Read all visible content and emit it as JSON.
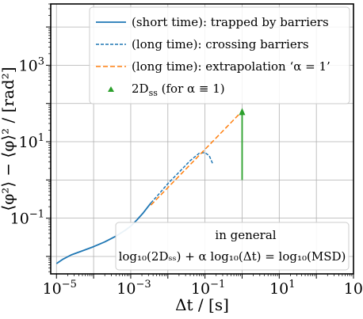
{
  "chart_data": {
    "type": "line",
    "xscale": "log",
    "yscale": "log",
    "xlim": [
      7e-06,
      1000
    ],
    "ylim": [
      0.0035,
      40000
    ],
    "grid": true,
    "xlabel": "Δt / [s]",
    "ylabel": "⟨φ²⟩ − ⟨φ⟩² / [rad²]",
    "xticks": [
      {
        "value": 1e-05,
        "base": "10",
        "exp": "−5"
      },
      {
        "value": 0.001,
        "base": "10",
        "exp": "−3"
      },
      {
        "value": 0.1,
        "base": "10",
        "exp": "−1"
      },
      {
        "value": 10,
        "base": "10",
        "exp": "1"
      },
      {
        "value": 1000,
        "base": "10",
        "exp": "3"
      }
    ],
    "yticks": [
      {
        "value": 0.1,
        "base": "10",
        "exp": "−1"
      },
      {
        "value": 10,
        "base": "10",
        "exp": "1"
      },
      {
        "value": 1000,
        "base": "10",
        "exp": "3"
      }
    ],
    "legend_position": "top-right",
    "series": [
      {
        "name": "(short time): trapped by barriers",
        "style": "solid",
        "color": "#1f77b4",
        "x": [
          1e-05,
          1.5e-05,
          2.5e-05,
          5e-05,
          0.0001,
          0.0002,
          0.0004,
          0.0007,
          0.001,
          0.0015,
          0.0022,
          0.0035
        ],
        "y": [
          0.0065,
          0.0085,
          0.011,
          0.014,
          0.018,
          0.024,
          0.034,
          0.048,
          0.062,
          0.092,
          0.14,
          0.25
        ]
      },
      {
        "name": "(long time): crossing barriers",
        "style": "dashed",
        "color": "#1f77b4",
        "x": [
          0.0035,
          0.006,
          0.01,
          0.02,
          0.04,
          0.07,
          0.1,
          0.13,
          0.16
        ],
        "y": [
          0.25,
          0.45,
          0.8,
          1.6,
          3.2,
          5.0,
          5.2,
          4.3,
          2.7
        ]
      },
      {
        "name": "(long time): extrapolation ‘α = 1’",
        "style": "dashed",
        "color": "#ff7f0e",
        "x": [
          0.0035,
          1
        ],
        "y": [
          0.22,
          63
        ]
      }
    ],
    "markers": [
      {
        "name": "2D_ss (for α ≡ 1)",
        "x": 1,
        "y_from": 1.0,
        "y_to": 63,
        "color": "#2ca02c"
      }
    ],
    "legend": [
      {
        "label": "(short time): trapped by barriers",
        "kind": "solid",
        "color": "#1f77b4"
      },
      {
        "label": "(long time): crossing barriers",
        "kind": "dashed-fine",
        "color": "#1f77b4"
      },
      {
        "label": "(long time): extrapolation ‘α = 1’",
        "kind": "dashed",
        "color": "#ff7f0e"
      },
      {
        "label": "2D",
        "sub": "ss",
        "tail": " (for α ≡ 1)",
        "kind": "triangle",
        "color": "#2ca02c"
      }
    ],
    "annotation": {
      "line1": "in general",
      "line2": "log₁₀(2Dₛₛ) + α log₁₀(Δt) = log₁₀(MSD)"
    }
  }
}
